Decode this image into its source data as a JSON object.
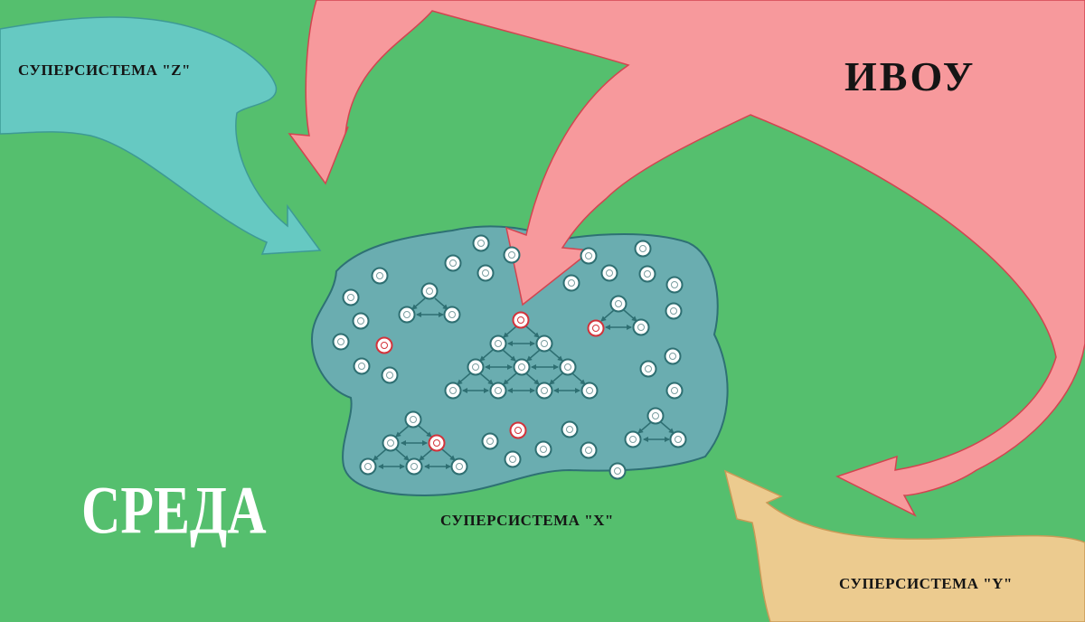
{
  "labels": {
    "supersystem_z": "СУПЕРСИСТЕМА \"Z\"",
    "supersystem_x": "СУПЕРСИСТЕМА \"X\"",
    "supersystem_y": "СУПЕРСИСТЕМА \"Y\"",
    "ivou": "ИВОУ",
    "environment": "СРЕДА"
  },
  "colors": {
    "background": "#55bf6e",
    "supersystem_z": "#66c9c2",
    "supersystem_x": "#6aadb0",
    "supersystem_y": "#eccb8f",
    "ivou": "#f7999c",
    "node_normal": "#ffffff",
    "node_highlighted": "#d2333b",
    "link": "#2e6f72"
  },
  "icons": {
    "node": "circle-node-icon",
    "influence_arrow": "arrow-icon"
  }
}
